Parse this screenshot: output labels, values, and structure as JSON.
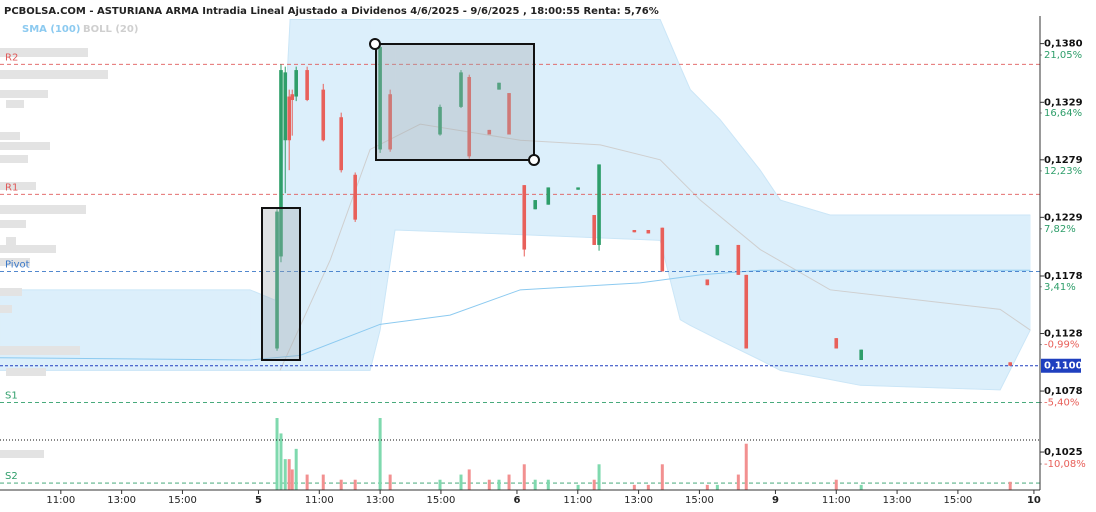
{
  "chart_data": {
    "type": "candlestick",
    "title": "PCBOLSA.COM - ASTURIANA ARMA Intradia Lineal Ajustado a Dividenos 4/6/2025 - 9/6/2025 , 18:00:55 Renta: 5,76%",
    "xlim": [
      0,
      34.2
    ],
    "xticks": [
      {
        "value": 2,
        "label": "11:00"
      },
      {
        "value": 4,
        "label": "13:00"
      },
      {
        "value": 6,
        "label": "15:00"
      },
      {
        "value": 8.5,
        "label": "5"
      },
      {
        "value": 10.5,
        "label": "11:00"
      },
      {
        "value": 12.5,
        "label": "13:00"
      },
      {
        "value": 14.5,
        "label": "15:00"
      },
      {
        "value": 17,
        "label": "6"
      },
      {
        "value": 19,
        "label": "11:00"
      },
      {
        "value": 21,
        "label": "13:00"
      },
      {
        "value": 23,
        "label": "15:00"
      },
      {
        "value": 25.5,
        "label": "9"
      },
      {
        "value": 27.5,
        "label": "11:00"
      },
      {
        "value": 29.5,
        "label": "13:00"
      },
      {
        "value": 31.5,
        "label": "15:00"
      },
      {
        "value": 34,
        "label": "10"
      }
    ],
    "ylim": [
      0.0992,
      0.1404
    ],
    "yticks": [
      {
        "value": 0.138,
        "label": "0,1380"
      },
      {
        "value": 0.1329,
        "label": "0,1329"
      },
      {
        "value": 0.1279,
        "label": "0,1279"
      },
      {
        "value": 0.1229,
        "label": "0,1229"
      },
      {
        "value": 0.1178,
        "label": "0,1178"
      },
      {
        "value": 0.1128,
        "label": "0,1128"
      },
      {
        "value": 0.1078,
        "label": "0,1078"
      },
      {
        "value": 0.1025,
        "label": "0,1025"
      }
    ],
    "y2lim": [
      -12.06,
      24.02
    ],
    "y2ticks": [
      {
        "value": 21.05,
        "label": "21,05%"
      },
      {
        "value": 16.64,
        "label": "16,64%"
      },
      {
        "value": 12.23,
        "label": "12,23%"
      },
      {
        "value": 7.82,
        "label": "7,82%"
      },
      {
        "value": 3.41,
        "label": "3,41%"
      },
      {
        "value": -0.99,
        "label": "-0,99%"
      },
      {
        "value": -5.4,
        "label": "-5,40%"
      },
      {
        "value": -10.08,
        "label": "-10,08%"
      }
    ],
    "levels": [
      {
        "name": "R2",
        "value": 0.1362,
        "color": "#e05a5a"
      },
      {
        "name": "R1",
        "value": 0.1249,
        "color": "#e05a5a"
      },
      {
        "name": "Pivot",
        "value": 0.1182,
        "color": "#3a78c8"
      },
      {
        "name": "S1",
        "value": 0.1068,
        "color": "#2e9e6a"
      },
      {
        "name": "S2",
        "value": 0.0998,
        "color": "#2e9e6a"
      }
    ],
    "last": {
      "value": 0.11,
      "label": "0,1100",
      "color": "#1f3fbf"
    },
    "up_color": "#2e9e6a",
    "down_color": "#e8605a",
    "volume_up_color": "#7fd9ae",
    "volume_down_color": "#f29090",
    "candles": {
      "x": [
        9.11,
        9.24,
        9.38,
        9.51,
        9.61,
        9.74,
        10.1,
        10.63,
        11.22,
        11.68,
        12.5,
        12.83,
        14.47,
        15.16,
        15.43,
        16.09,
        16.41,
        16.74,
        17.24,
        17.6,
        18.03,
        19.01,
        19.54,
        19.7,
        20.86,
        21.32,
        21.78,
        23.26,
        23.59,
        24.28,
        24.54,
        27.5,
        28.32,
        33.22
      ],
      "open": [
        0.1115,
        0.1195,
        0.1296,
        0.1334,
        0.1336,
        0.1334,
        0.1357,
        0.134,
        0.1316,
        0.1266,
        0.1288,
        0.1336,
        0.1301,
        0.1325,
        0.1351,
        0.1305,
        0.134,
        0.1337,
        0.1257,
        0.1236,
        0.124,
        0.1253,
        0.1231,
        0.1205,
        0.1218,
        0.1218,
        0.122,
        0.1175,
        0.1196,
        0.1205,
        0.1179,
        0.1124,
        0.1105,
        0.1103
      ],
      "high": [
        0.1236,
        0.1362,
        0.136,
        0.134,
        0.134,
        0.136,
        0.136,
        0.1345,
        0.132,
        0.1268,
        0.138,
        0.134,
        0.1327,
        0.1357,
        0.1353,
        0.1305,
        0.1346,
        0.1337,
        0.1257,
        0.1244,
        0.1255,
        0.1255,
        0.1231,
        0.1275,
        0.1218,
        0.1218,
        0.122,
        0.1175,
        0.1205,
        0.1205,
        0.1179,
        0.1124,
        0.1114,
        0.1103
      ],
      "low": [
        0.1113,
        0.119,
        0.125,
        0.127,
        0.13,
        0.133,
        0.133,
        0.1295,
        0.1268,
        0.1225,
        0.1285,
        0.1286,
        0.13,
        0.1324,
        0.128,
        0.1301,
        0.134,
        0.1301,
        0.1195,
        0.1236,
        0.124,
        0.1253,
        0.1205,
        0.12,
        0.1216,
        0.1215,
        0.1182,
        0.117,
        0.1196,
        0.1179,
        0.1115,
        0.1115,
        0.1105,
        0.11
      ],
      "close": [
        0.1234,
        0.1357,
        0.1355,
        0.1296,
        0.1331,
        0.1357,
        0.1331,
        0.1296,
        0.127,
        0.1227,
        0.1377,
        0.1288,
        0.1325,
        0.1355,
        0.1282,
        0.1301,
        0.1346,
        0.1301,
        0.1201,
        0.1244,
        0.1255,
        0.1255,
        0.1205,
        0.1275,
        0.1216,
        0.1215,
        0.1182,
        0.117,
        0.1205,
        0.1179,
        0.1115,
        0.1115,
        0.1114,
        0.11
      ],
      "volume": [
        70,
        55,
        30,
        30,
        20,
        40,
        15,
        15,
        10,
        10,
        70,
        15,
        10,
        15,
        20,
        10,
        10,
        15,
        25,
        10,
        10,
        5,
        10,
        25,
        5,
        5,
        25,
        5,
        5,
        15,
        45,
        10,
        5,
        8
      ]
    },
    "boll": {
      "name": "BOLL (20)",
      "color": "#cfcfcf",
      "fill": "#dceffb",
      "x": [
        0,
        8.22,
        9.05,
        9.54,
        12.17,
        12.5,
        12.99,
        17.11,
        21.71,
        22.37,
        22.7,
        23.68,
        25.0,
        25.66,
        27.3,
        28.29,
        32.89,
        33.88
      ],
      "upper": [
        0.1166,
        0.1166,
        0.1157,
        0.1401,
        0.1401,
        0.1401,
        0.1401,
        0.1401,
        0.1401,
        0.136,
        0.134,
        0.1314,
        0.127,
        0.1244,
        0.1231,
        0.1231,
        0.1231,
        0.1231
      ],
      "lower": [
        0.1096,
        0.1096,
        0.1096,
        0.1096,
        0.1096,
        0.1131,
        0.1218,
        0.1214,
        0.1209,
        0.114,
        0.1135,
        0.1122,
        0.1105,
        0.1096,
        0.1088,
        0.1083,
        0.1079,
        0.1131
      ],
      "middle_x": [
        9.21,
        10.86,
        12.17,
        13.82,
        17.11,
        19.74,
        21.71,
        23.03,
        25.0,
        27.3,
        32.89,
        33.88
      ],
      "middle": [
        0.1096,
        0.1192,
        0.1288,
        0.131,
        0.1296,
        0.1292,
        0.1279,
        0.1244,
        0.1201,
        0.1166,
        0.1149,
        0.1131
      ]
    },
    "sma": {
      "name": "SMA (100)",
      "color": "#8ccaf0",
      "x": [
        0,
        8.22,
        9.87,
        12.5,
        14.8,
        17.11,
        21.05,
        23.03,
        25.0,
        33.88
      ],
      "values": [
        0.1107,
        0.1105,
        0.1109,
        0.1136,
        0.1144,
        0.1166,
        0.1172,
        0.1179,
        0.1183,
        0.1183
      ]
    }
  }
}
